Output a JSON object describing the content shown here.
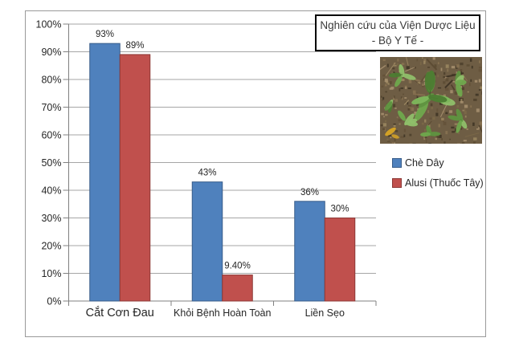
{
  "chart_data": {
    "type": "bar",
    "title": "Nghiên cứu của Viện Dược Liệu - Bộ Y Tế -",
    "categories": [
      "Cắt Cơn Đau",
      "Khỏi Bệnh Hoàn Toàn",
      "Liền Sẹo"
    ],
    "series": [
      {
        "name": "Chè Dây",
        "color": "#4F81BD",
        "border_color": "#385D8A",
        "values": [
          93,
          43,
          36
        ],
        "value_labels": [
          "93%",
          "43%",
          "36%"
        ]
      },
      {
        "name": "Alusi (Thuốc Tây)",
        "color": "#C0504D",
        "border_color": "#8C3836",
        "values": [
          89,
          9.4,
          30
        ],
        "value_labels": [
          "89%",
          "9.40%",
          "30%"
        ]
      }
    ],
    "xlabel": "",
    "ylabel": "",
    "ylim": [
      0,
      100
    ],
    "ytick_labels": [
      "0%",
      "10%",
      "20%",
      "30%",
      "40%",
      "50%",
      "60%",
      "70%",
      "80%",
      "90%",
      "100%"
    ],
    "grid": true,
    "legend_position": "right"
  },
  "title_box": {
    "lines": [
      "Nghiên cứu của Viện Dược Liệu",
      "- Bộ Y Tế -"
    ]
  },
  "colors": {
    "gridline": "#A6A6A6",
    "axis_line": "#808080",
    "text": "#262626",
    "frame_border": "#9A9A9A"
  }
}
